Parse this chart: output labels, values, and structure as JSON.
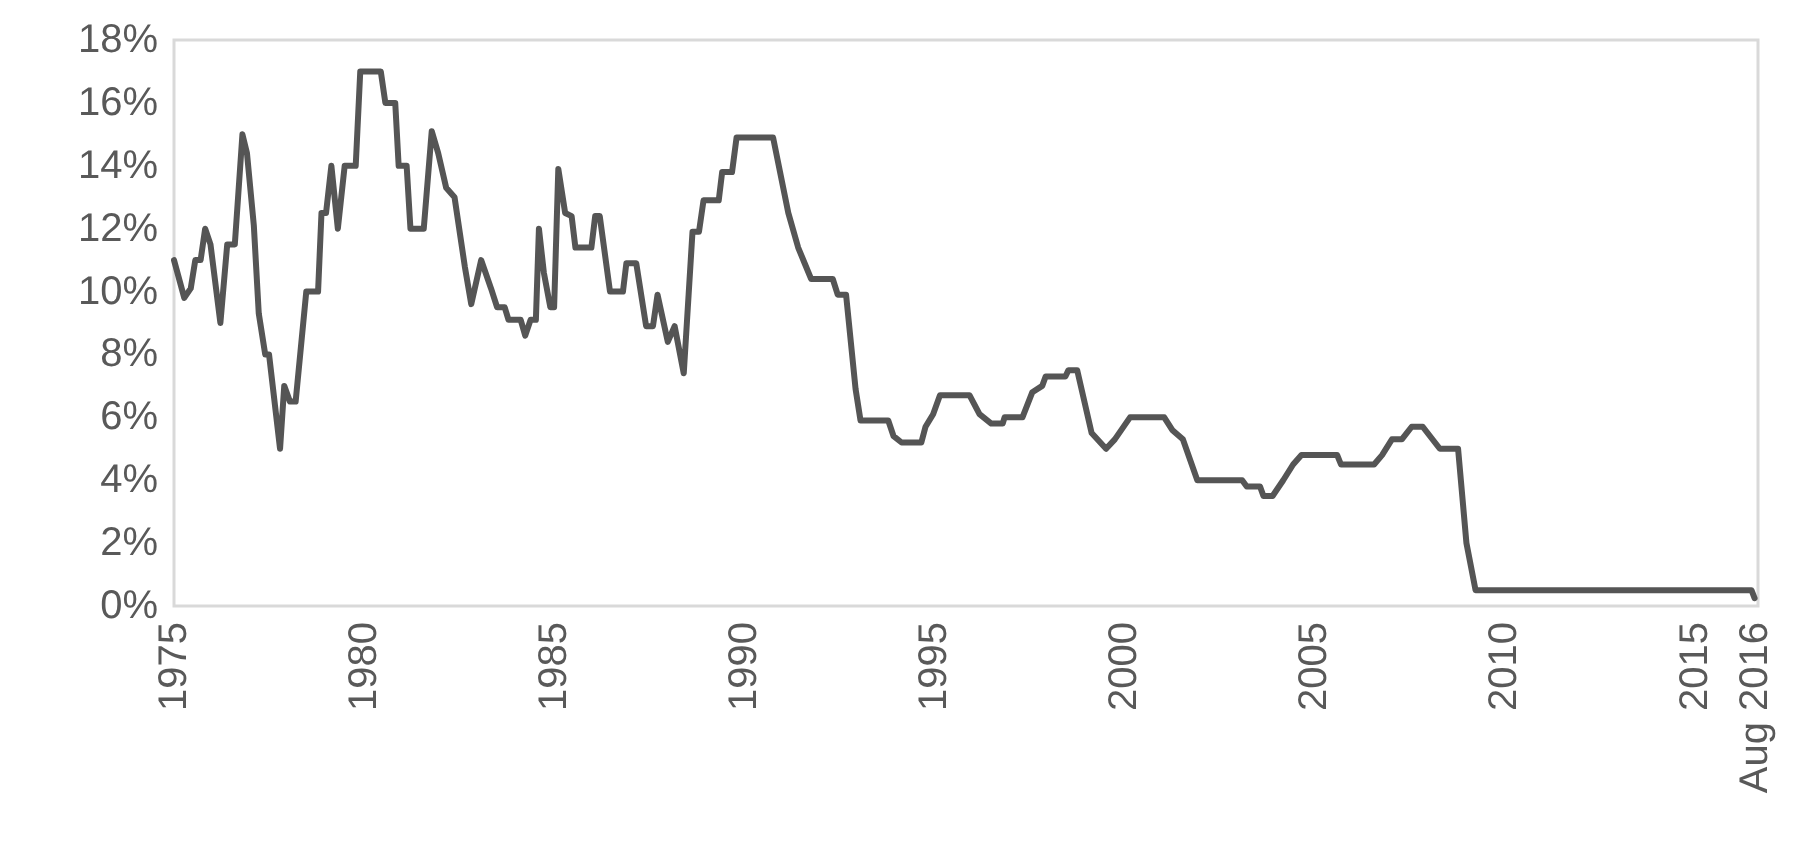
{
  "chart_data": {
    "type": "line",
    "x": [
      1975.0,
      1975.27,
      1975.44,
      1975.56,
      1975.7,
      1975.82,
      1975.96,
      1976.22,
      1976.4,
      1976.6,
      1976.8,
      1976.92,
      1977.1,
      1977.23,
      1977.4,
      1977.5,
      1977.79,
      1977.9,
      1978.05,
      1978.2,
      1978.48,
      1978.79,
      1978.88,
      1979.0,
      1979.14,
      1979.31,
      1979.49,
      1979.78,
      1979.9,
      1980.44,
      1980.56,
      1980.82,
      1980.91,
      1981.12,
      1981.22,
      1981.57,
      1981.78,
      1981.95,
      1982.16,
      1982.38,
      1982.65,
      1982.82,
      1983.08,
      1983.34,
      1983.5,
      1983.7,
      1983.8,
      1984.12,
      1984.24,
      1984.38,
      1984.52,
      1984.6,
      1984.73,
      1984.9,
      1985.0,
      1985.11,
      1985.29,
      1985.46,
      1985.56,
      1985.98,
      1986.08,
      1986.2,
      1986.47,
      1986.81,
      1986.9,
      1987.16,
      1987.42,
      1987.6,
      1987.72,
      1987.99,
      1988.17,
      1988.41,
      1988.64,
      1988.81,
      1988.93,
      1989.33,
      1989.42,
      1989.68,
      1989.8,
      1990.76,
      1991.16,
      1991.42,
      1991.59,
      1991.76,
      1992.33,
      1992.46,
      1992.68,
      1992.93,
      1993.06,
      1993.79,
      1993.93,
      1994.14,
      1994.66,
      1994.77,
      1994.97,
      1995.15,
      1995.93,
      1996.19,
      1996.5,
      1996.8,
      1996.85,
      1997.32,
      1997.58,
      1997.84,
      1997.93,
      1998.45,
      1998.53,
      1998.76,
      1999.14,
      1999.52,
      1999.75,
      2000.15,
      2001.05,
      2001.26,
      2001.54,
      2001.92,
      2003.1,
      2003.22,
      2003.57,
      2003.66,
      2003.9,
      2004.18,
      2004.44,
      2004.66,
      2005.6,
      2005.7,
      2006.57,
      2006.78,
      2007.04,
      2007.3,
      2007.56,
      2007.85,
      2008.3,
      2008.78,
      2009.0,
      2009.24,
      2016.5,
      2016.58
    ],
    "series": [
      {
        "color": "#555555",
        "values": [
          11.0,
          9.8,
          10.1,
          11.0,
          11.0,
          12.0,
          11.5,
          9.0,
          11.5,
          11.5,
          15.0,
          14.4,
          12.1,
          9.3,
          8.0,
          8.0,
          5.0,
          7.0,
          6.5,
          6.5,
          10.0,
          10.0,
          12.5,
          12.5,
          14.0,
          12.0,
          14.0,
          14.0,
          17.0,
          17.0,
          16.0,
          16.0,
          14.0,
          14.0,
          12.0,
          12.0,
          15.1,
          14.4,
          13.3,
          13.0,
          10.8,
          9.6,
          11.0,
          10.1,
          9.5,
          9.5,
          9.1,
          9.1,
          8.6,
          9.1,
          9.1,
          12.0,
          10.6,
          9.5,
          9.5,
          13.9,
          12.5,
          12.4,
          11.4,
          11.4,
          12.4,
          12.4,
          10.0,
          10.0,
          10.9,
          10.9,
          8.9,
          8.9,
          9.9,
          8.4,
          8.9,
          7.4,
          11.9,
          11.9,
          12.9,
          12.9,
          13.8,
          13.8,
          14.9,
          14.9,
          12.5,
          11.4,
          10.9,
          10.4,
          10.4,
          9.9,
          9.9,
          6.9,
          5.9,
          5.9,
          5.4,
          5.2,
          5.2,
          5.7,
          6.1,
          6.7,
          6.7,
          6.1,
          5.8,
          5.8,
          6.0,
          6.0,
          6.8,
          7.0,
          7.3,
          7.3,
          7.5,
          7.5,
          5.5,
          5.0,
          5.3,
          6.0,
          6.0,
          5.6,
          5.3,
          4.0,
          4.0,
          3.8,
          3.8,
          3.5,
          3.5,
          4.0,
          4.5,
          4.8,
          4.8,
          4.5,
          4.5,
          4.8,
          5.3,
          5.3,
          5.7,
          5.7,
          5.0,
          5.0,
          2.0,
          0.5,
          0.5,
          0.25
        ]
      }
    ],
    "xlim": [
      1975,
      2016.67
    ],
    "xticks": [
      1975,
      1980,
      1985,
      1990,
      1995,
      2000,
      2005,
      2010,
      2015,
      {
        "value": 2016.58,
        "label": "Aug 2016"
      }
    ],
    "ylim": [
      0,
      18
    ],
    "yticks": [
      {
        "value": 0,
        "label": "0%"
      },
      {
        "value": 2,
        "label": "2%"
      },
      {
        "value": 4,
        "label": "4%"
      },
      {
        "value": 6,
        "label": "6%"
      },
      {
        "value": 8,
        "label": "8%"
      },
      {
        "value": 10,
        "label": "10%"
      },
      {
        "value": 12,
        "label": "12%"
      },
      {
        "value": 14,
        "label": "14%"
      },
      {
        "value": 16,
        "label": "16%"
      },
      {
        "value": 18,
        "label": "18%"
      }
    ],
    "grid": false,
    "marker": "none",
    "line_style": "solid"
  }
}
